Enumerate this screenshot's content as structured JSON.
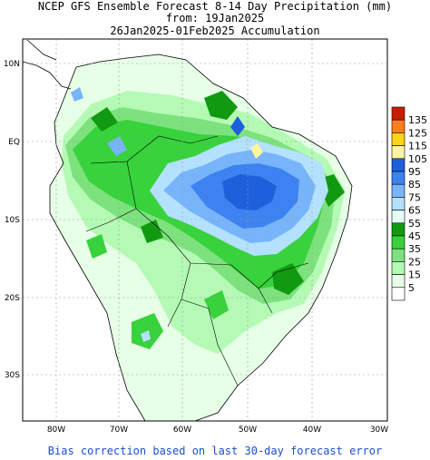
{
  "header": {
    "line1": "NCEP GFS Ensemble Forecast 8-14 Day Precipitation (mm)",
    "line2": "from: 19Jan2025",
    "line3": "26Jan2025-01Feb2025 Accumulation"
  },
  "footer": "Bias correction based on last 30-day forecast error",
  "lat_ticks": [
    "10N",
    "EQ",
    "10S",
    "20S",
    "30S"
  ],
  "lon_ticks": [
    "80W",
    "70W",
    "60W",
    "50W",
    "40W",
    "30W"
  ],
  "legend": {
    "levels": [
      {
        "label": "135",
        "color": "#c81e00"
      },
      {
        "label": "125",
        "color": "#ff7d1e"
      },
      {
        "label": "115",
        "color": "#ffd21e"
      },
      {
        "label": "105",
        "color": "#fff5a0"
      },
      {
        "label": "95",
        "color": "#1e5fdc"
      },
      {
        "label": "85",
        "color": "#3c82f0"
      },
      {
        "label": "75",
        "color": "#78b4fa"
      },
      {
        "label": "65",
        "color": "#b4e1ff"
      },
      {
        "label": "55",
        "color": "#e6fff5"
      },
      {
        "label": "45",
        "color": "#119a11"
      },
      {
        "label": "35",
        "color": "#37d23c"
      },
      {
        "label": "25",
        "color": "#7de17d"
      },
      {
        "label": "15",
        "color": "#b4fab4"
      },
      {
        "label": "5",
        "color": "#e6ffe6"
      }
    ],
    "bottom_color": "#ffffff"
  },
  "colors": {
    "light_green": "#e6ffe6",
    "pale_green": "#b4fab4",
    "green": "#7de17d",
    "mid_green": "#37d23c",
    "dark_green": "#119a11",
    "blue_light": "#b4e1ff",
    "blue": "#78b4fa",
    "blue_mid": "#3c82f0",
    "blue_dark": "#1e5fdc",
    "yellow": "#fff5a0"
  }
}
